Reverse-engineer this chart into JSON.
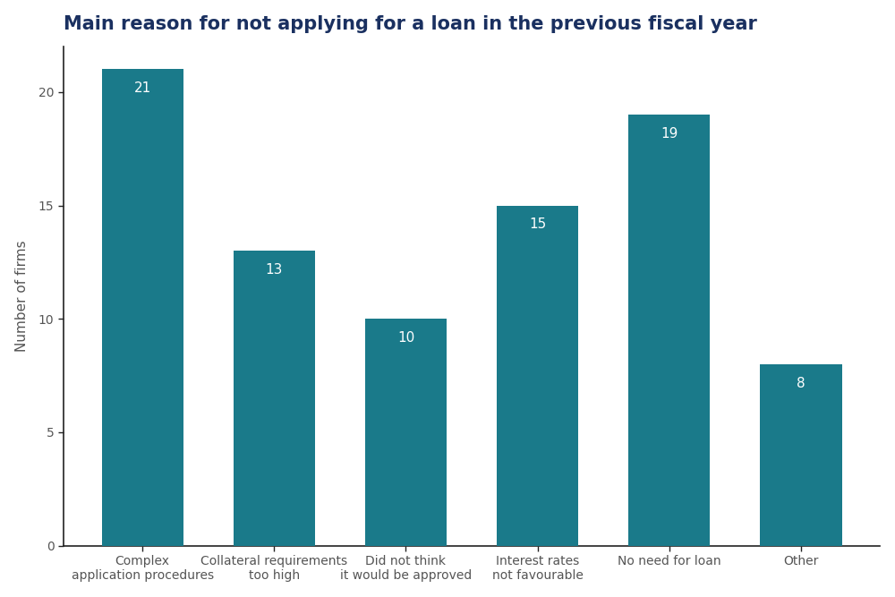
{
  "title": "Main reason for not applying for a loan in the previous fiscal year",
  "categories": [
    "Complex\napplication procedures",
    "Collateral requirements\ntoo high",
    "Did not think\nit would be approved",
    "Interest rates\nnot favourable",
    "No need for loan",
    "Other"
  ],
  "values": [
    21,
    13,
    10,
    15,
    19,
    8
  ],
  "bar_color": "#1a7a8a",
  "label_color": "#ffffff",
  "title_color": "#1a3060",
  "ylabel": "Number of firms",
  "background_color": "#ffffff",
  "ylim": [
    0,
    22
  ],
  "yticks": [
    0,
    5,
    10,
    15,
    20
  ],
  "title_fontsize": 15,
  "label_fontsize": 11,
  "ylabel_fontsize": 11,
  "tick_fontsize": 10,
  "bar_width": 0.62
}
